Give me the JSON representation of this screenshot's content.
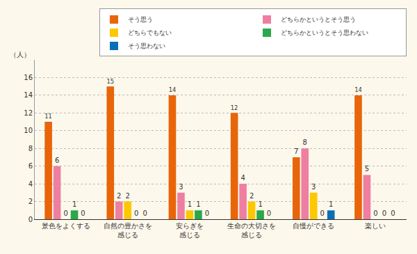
{
  "chart_data": {
    "type": "bar",
    "y_label": "（人）",
    "categories": [
      "景色をよくする",
      "自然の豊かさを\n感じる",
      "安らぎを\n感じる",
      "生命の大切さを\n感じる",
      "自慢ができる",
      "楽しい"
    ],
    "series": [
      {
        "name": "そう思う",
        "color": "#e8650a",
        "values": [
          11,
          15,
          14,
          12,
          7,
          14
        ]
      },
      {
        "name": "どちらかというとそう思う",
        "color": "#ee7fa0",
        "values": [
          6,
          2,
          3,
          4,
          8,
          5
        ]
      },
      {
        "name": "どちらでもない",
        "color": "#fcc800",
        "values": [
          0,
          2,
          1,
          2,
          3,
          0
        ]
      },
      {
        "name": "どちらかというとそう思わない",
        "color": "#2aa84a",
        "values": [
          1,
          0,
          1,
          1,
          0,
          0
        ]
      },
      {
        "name": "そう思わない",
        "color": "#0a6fb5",
        "values": [
          0,
          0,
          0,
          0,
          1,
          0
        ]
      }
    ],
    "ylim": [
      0,
      18
    ],
    "yticks": [
      0,
      2,
      4,
      6,
      8,
      10,
      12,
      14,
      16
    ],
    "grid": true,
    "legend": "upper right",
    "data_labels": true
  }
}
